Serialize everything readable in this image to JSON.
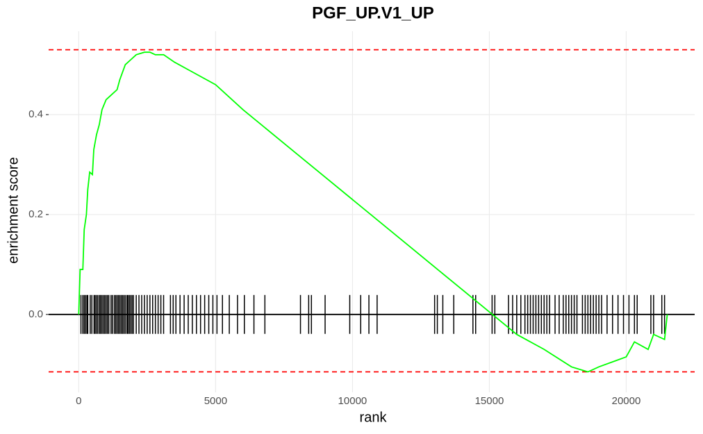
{
  "chart_data": {
    "type": "line",
    "title": "PGF_UP.V1_UP",
    "x_label": "rank",
    "y_label": "enrichment score",
    "x": [
      0,
      50,
      150,
      200,
      280,
      330,
      400,
      500,
      550,
      650,
      750,
      850,
      1000,
      1200,
      1400,
      1500,
      1700,
      1900,
      2100,
      2400,
      2600,
      2800,
      3100,
      3500,
      4000,
      5000,
      6000,
      8000,
      10000,
      12000,
      14000,
      15000,
      16000,
      17000,
      18000,
      18600,
      19000,
      19500,
      20000,
      20300,
      20800,
      21000,
      21400,
      21500
    ],
    "values": [
      0,
      0.09,
      0.09,
      0.17,
      0.2,
      0.25,
      0.285,
      0.28,
      0.33,
      0.36,
      0.38,
      0.41,
      0.43,
      0.44,
      0.45,
      0.47,
      0.5,
      0.51,
      0.52,
      0.525,
      0.525,
      0.52,
      0.52,
      0.505,
      0.49,
      0.46,
      0.41,
      0.32,
      0.23,
      0.14,
      0.05,
      0.005,
      -0.04,
      -0.07,
      -0.105,
      -0.115,
      -0.105,
      -0.095,
      -0.085,
      -0.055,
      -0.07,
      -0.04,
      -0.05,
      0
    ],
    "color": "#00ff00",
    "hits": [
      80,
      150,
      200,
      250,
      300,
      330,
      420,
      480,
      560,
      600,
      650,
      700,
      760,
      800,
      850,
      900,
      950,
      1000,
      1050,
      1100,
      1180,
      1230,
      1300,
      1350,
      1400,
      1450,
      1500,
      1550,
      1600,
      1650,
      1700,
      1760,
      1800,
      1850,
      1900,
      1950,
      2000,
      2100,
      2200,
      2300,
      2400,
      2500,
      2600,
      2700,
      2800,
      2900,
      3000,
      3100,
      3350,
      3450,
      3550,
      3700,
      3850,
      4000,
      4150,
      4300,
      4450,
      4600,
      4750,
      4900,
      5050,
      5250,
      5500,
      5800,
      6050,
      6400,
      6800,
      8100,
      8400,
      8500,
      9000,
      9900,
      10300,
      10600,
      10900,
      13000,
      13100,
      13300,
      13700,
      14400,
      14500,
      15100,
      15200,
      15700,
      15850,
      16000,
      16150,
      16300,
      16400,
      16500,
      16600,
      16700,
      16800,
      16900,
      17000,
      17100,
      17200,
      17400,
      17550,
      17700,
      17800,
      17900,
      18000,
      18100,
      18200,
      18400,
      18500,
      18600,
      18700,
      18800,
      18900,
      19000,
      19100,
      19300,
      19500,
      19700,
      19900,
      20100,
      20300,
      20400,
      20900,
      21000,
      21300,
      21400
    ],
    "reference_lines": [
      0.53,
      -0.115
    ],
    "reference_color": "#ff0000",
    "xlim": [
      -1100,
      22500
    ],
    "xticks": [
      0,
      5000,
      10000,
      15000,
      20000
    ],
    "ylim": [
      -0.156,
      0.567
    ],
    "yticks": [
      {
        "value": 0,
        "label": "0.0"
      },
      0.2,
      0.4
    ],
    "grid": true
  }
}
